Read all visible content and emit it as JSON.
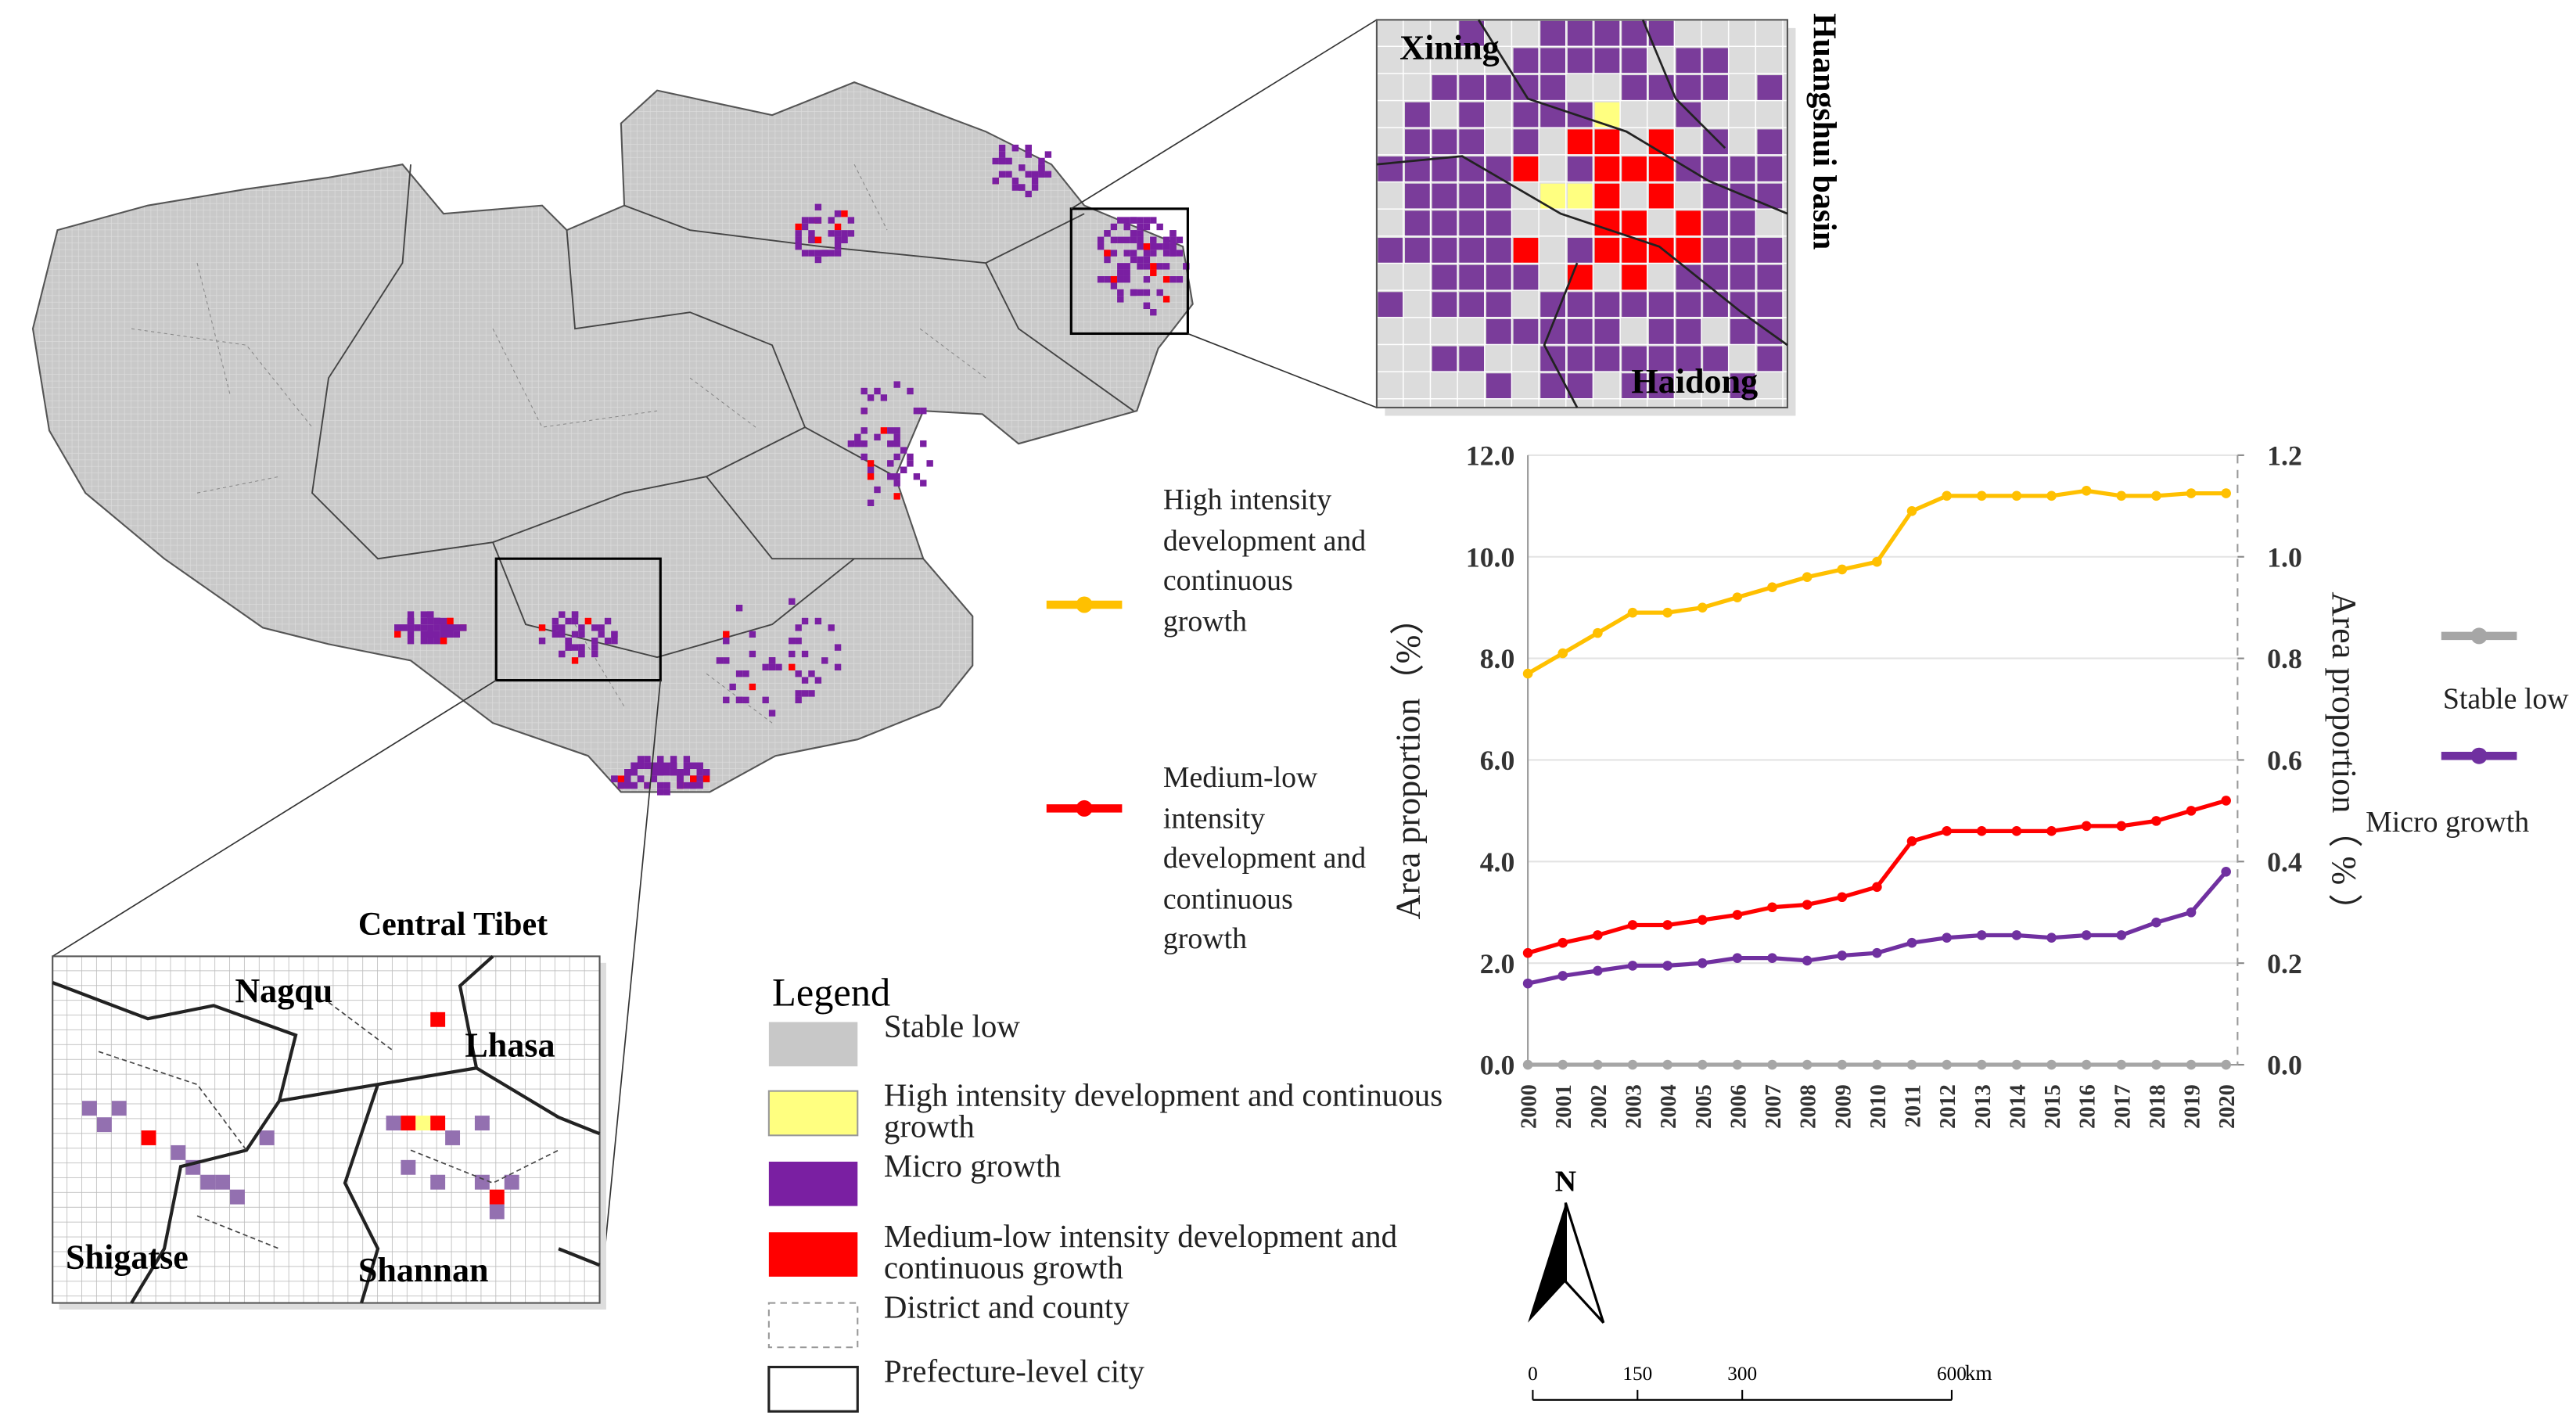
{
  "chart_data": {
    "type": "line",
    "categories": [
      "2000",
      "2001",
      "2002",
      "2003",
      "2004",
      "2005",
      "2006",
      "2007",
      "2008",
      "2009",
      "2010",
      "2011",
      "2012",
      "2013",
      "2014",
      "2015",
      "2016",
      "2017",
      "2018",
      "2019",
      "2020"
    ],
    "ylabel": "Area proportion（%）",
    "y2label": "Area proportion（ % ）",
    "ylim": [
      0,
      12
    ],
    "yticks": [
      {
        "value": 0,
        "label": "0.0"
      },
      {
        "value": 2,
        "label": "2.0"
      },
      {
        "value": 4,
        "label": "4.0"
      },
      {
        "value": 6,
        "label": "6.0"
      },
      {
        "value": 8,
        "label": "8.0"
      },
      {
        "value": 10,
        "label": "10.0"
      },
      {
        "value": 12,
        "label": "12.0"
      }
    ],
    "y2lim": [
      0,
      1.2
    ],
    "y2ticks": [
      {
        "value": 0,
        "label": "0.0"
      },
      {
        "value": 0.2,
        "label": "0.2"
      },
      {
        "value": 0.4,
        "label": "0.4"
      },
      {
        "value": 0.6,
        "label": "0.6"
      },
      {
        "value": 0.8,
        "label": "0.8"
      },
      {
        "value": 1,
        "label": "1.0"
      },
      {
        "value": 1.2,
        "label": "1.2"
      }
    ],
    "grid": true,
    "series": [
      {
        "name": "High intensity development and continuous growth",
        "color": "#ffc000",
        "values": [
          7.7,
          8.1,
          8.5,
          8.9,
          8.9,
          9.0,
          9.2,
          9.4,
          9.6,
          9.75,
          9.9,
          10.9,
          11.2,
          11.2,
          11.2,
          11.2,
          11.3,
          11.2,
          11.2,
          11.25,
          11.25
        ]
      },
      {
        "name": "Medium-low intensity development and continuous growth",
        "color": "#ff0000",
        "values": [
          2.2,
          2.4,
          2.55,
          2.75,
          2.75,
          2.85,
          2.95,
          3.1,
          3.15,
          3.3,
          3.5,
          4.4,
          4.6,
          4.6,
          4.6,
          4.6,
          4.7,
          4.7,
          4.8,
          5.0,
          5.2
        ]
      },
      {
        "name": "Stable low",
        "color": "#a6a6a6",
        "axis": "y2",
        "values": [
          0,
          0,
          0,
          0,
          0,
          0,
          0,
          0,
          0,
          0,
          0,
          0,
          0,
          0,
          0,
          0,
          0,
          0,
          0,
          0,
          0
        ]
      },
      {
        "name": "Micro growth",
        "color": "#7030a0",
        "axis": "y2",
        "values": [
          0.16,
          0.175,
          0.185,
          0.195,
          0.195,
          0.2,
          0.21,
          0.21,
          0.205,
          0.215,
          0.22,
          0.24,
          0.25,
          0.255,
          0.255,
          0.25,
          0.255,
          0.255,
          0.28,
          0.3,
          0.38
        ]
      }
    ]
  },
  "map": {
    "insets": [
      {
        "title": "Huangshui basin",
        "labels": [
          "Xining",
          "Haidong"
        ]
      },
      {
        "title": "Central Tibet",
        "labels": [
          "Nagqu",
          "Lhasa",
          "Shigatse",
          "Shannan"
        ]
      }
    ],
    "legend": {
      "title": "Legend",
      "items": [
        "Stable low",
        "High intensity development and continuous growth",
        "Micro growth",
        "Medium-low intensity development and continuous growth",
        "District and county",
        "Prefecture-level city"
      ]
    },
    "north": "N",
    "scale_bar": {
      "ticks": [
        0,
        150,
        300,
        600
      ],
      "unit": "km"
    }
  }
}
